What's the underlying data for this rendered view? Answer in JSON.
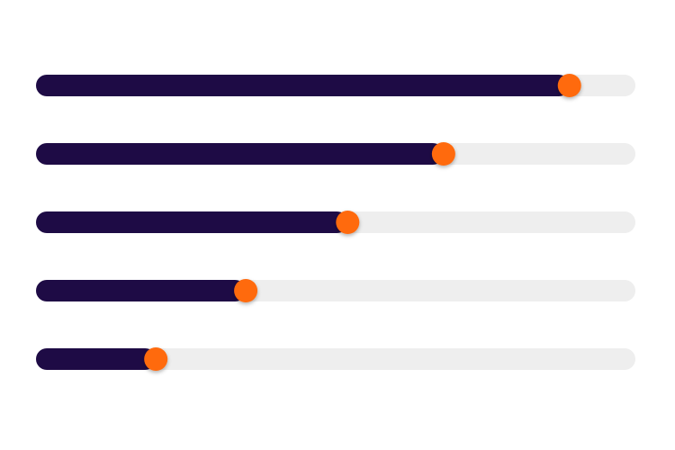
{
  "sliders": {
    "min": 0,
    "max": 100,
    "values": [
      89,
      68,
      52,
      35,
      20
    ],
    "fill_color": "#1e0b45",
    "track_color": "#eeeeee",
    "thumb_color": "#ff6a0d"
  }
}
